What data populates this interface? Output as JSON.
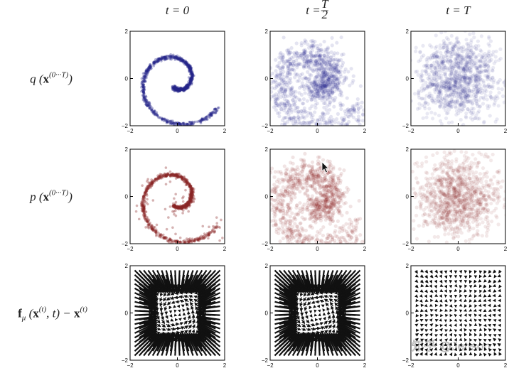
{
  "columns": [
    {
      "header_parts": [
        {
          "text": "t = 0"
        }
      ]
    },
    {
      "header_parts": [
        {
          "text": "t = "
        },
        {
          "frac": [
            "T",
            "2"
          ]
        }
      ]
    },
    {
      "header_parts": [
        {
          "text": "t = T"
        }
      ]
    }
  ],
  "rows": [
    {
      "label_parts": [
        {
          "text": "q ("
        },
        {
          "text": "x",
          "bold": true
        },
        {
          "text": "(0···T)",
          "sup": true
        },
        {
          "text": ")"
        }
      ]
    },
    {
      "label_parts": [
        {
          "text": "p ("
        },
        {
          "text": "x",
          "bold": true
        },
        {
          "text": "(0···T)",
          "sup": true
        },
        {
          "text": ")"
        }
      ]
    },
    {
      "label_parts": [
        {
          "text": "f",
          "bold": true
        },
        {
          "text": "μ",
          "sub": true
        },
        {
          "text": " ("
        },
        {
          "text": "x",
          "bold": true
        },
        {
          "text": "(t)",
          "sup": true
        },
        {
          "text": ", t) − "
        },
        {
          "text": "x",
          "bold": true
        },
        {
          "text": "(t)",
          "sup": true
        }
      ]
    }
  ],
  "axes": {
    "xlim": [
      -2,
      2
    ],
    "ylim": [
      -2,
      2
    ],
    "xticks": [
      {
        "value": -2,
        "label": "−2"
      },
      0,
      2
    ],
    "yticks": [
      {
        "value": -2,
        "label": "−2"
      },
      0,
      2
    ]
  },
  "watermark": "知乎 @Jenson"
}
